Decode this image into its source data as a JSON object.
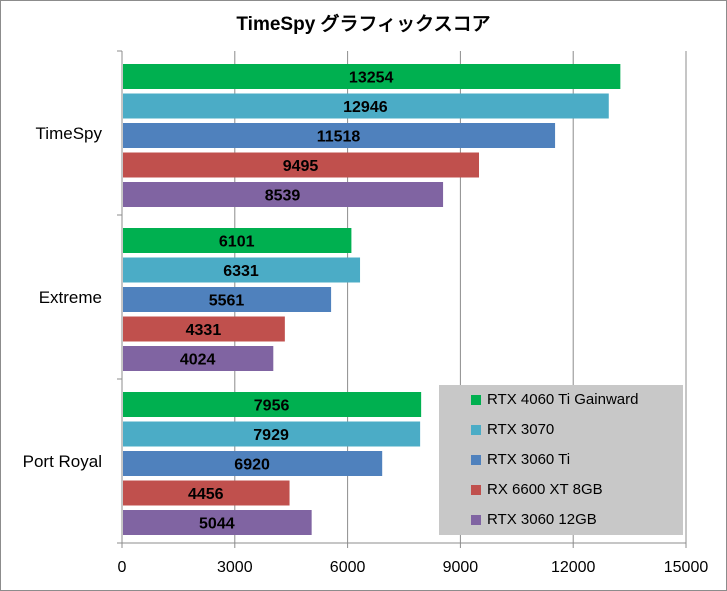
{
  "chart_data": {
    "type": "bar",
    "orientation": "horizontal",
    "title": "TimeSpy グラフィックスコア",
    "categories": [
      "TimeSpy",
      "Extreme",
      "Port Royal"
    ],
    "series": [
      {
        "name": "RTX 4060 Ti Gainward",
        "color": "#00b050",
        "values": [
          13254,
          6101,
          7956
        ]
      },
      {
        "name": "RTX 3070",
        "color": "#4bacc6",
        "values": [
          12946,
          6331,
          7929
        ]
      },
      {
        "name": "RTX 3060 Ti",
        "color": "#4f81bd",
        "values": [
          11518,
          5561,
          6920
        ]
      },
      {
        "name": "RX 6600 XT 8GB",
        "color": "#c0504d",
        "values": [
          9495,
          4331,
          4456
        ]
      },
      {
        "name": "RTX 3060 12GB",
        "color": "#8064a2",
        "values": [
          8539,
          4024,
          5044
        ]
      }
    ],
    "xlim": [
      0,
      15000
    ],
    "xticks": [
      "0",
      "3000",
      "6000",
      "9000",
      "12000",
      "15000"
    ],
    "xlabel": "",
    "ylabel": "",
    "grid": "vertical",
    "legend_position": "bottom-right",
    "data_labels": true
  }
}
